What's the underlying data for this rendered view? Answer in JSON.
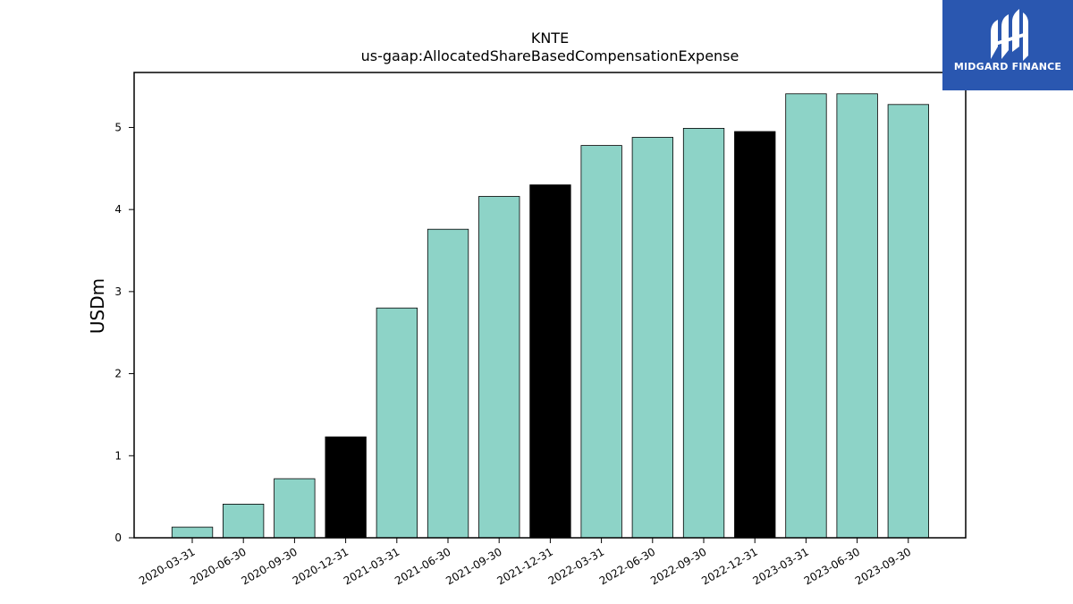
{
  "brand": {
    "name": "MIDGARD FINANCE",
    "color": "#2a57b0"
  },
  "chart_data": {
    "type": "bar",
    "title": "KNTE",
    "subtitle": "us-gaap:AllocatedShareBasedCompensationExpense",
    "xlabel": "",
    "ylabel": "USDm",
    "ylim": [
      0,
      5.67
    ],
    "yticks": [
      0,
      1,
      2,
      3,
      4,
      5
    ],
    "grid": false,
    "categories": [
      "2020-03-31",
      "2020-06-30",
      "2020-09-30",
      "2020-12-31",
      "2021-03-31",
      "2021-06-30",
      "2021-09-30",
      "2021-12-31",
      "2022-03-31",
      "2022-06-30",
      "2022-09-30",
      "2022-12-31",
      "2023-03-31",
      "2023-06-30",
      "2023-09-30"
    ],
    "values": [
      0.13,
      0.41,
      0.72,
      1.23,
      2.8,
      3.76,
      4.16,
      4.3,
      4.78,
      4.88,
      4.99,
      4.95,
      5.41,
      5.41,
      5.28
    ],
    "colors": {
      "quarter": "#8dd3c7",
      "year_end": "#000000",
      "edge": "#000000"
    },
    "highlight_categories": [
      "2020-12-31",
      "2021-12-31",
      "2022-12-31"
    ]
  }
}
